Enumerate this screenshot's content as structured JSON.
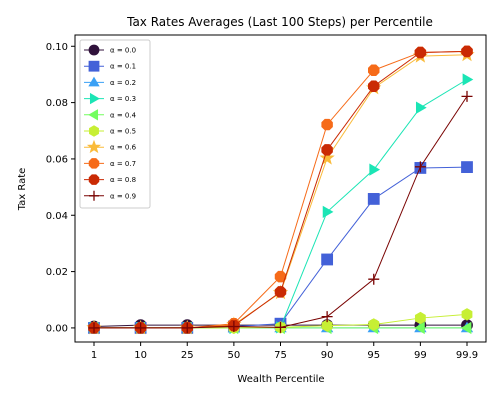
{
  "chart_data": {
    "type": "line",
    "title": "Tax Rates Averages (Last 100 Steps) per Percentile",
    "xlabel": "Wealth Percentile",
    "ylabel": "Tax Rate",
    "categories": [
      "1",
      "10",
      "25",
      "50",
      "75",
      "90",
      "95",
      "99",
      "99.9"
    ],
    "ylim": [
      -0.005,
      0.104
    ],
    "yticks": [
      0.0,
      0.02,
      0.04,
      0.06,
      0.08,
      0.1
    ],
    "ytick_labels": [
      "0.00",
      "0.02",
      "0.04",
      "0.06",
      "0.08",
      "0.10"
    ],
    "grid": false,
    "legend_position": "top-left",
    "series": [
      {
        "name": "α = 0.0",
        "color": "#30123b",
        "marker": "circle",
        "values": [
          0.0005,
          0.001,
          0.001,
          0.001,
          0.001,
          0.001,
          0.001,
          0.001,
          0.001
        ]
      },
      {
        "name": "α = 0.1",
        "color": "#4361d8",
        "marker": "square",
        "values": [
          0.0,
          0.0,
          0.0,
          0.0005,
          0.0015,
          0.0243,
          0.0458,
          0.0568,
          0.0571
        ]
      },
      {
        "name": "α = 0.2",
        "color": "#3aa0f5",
        "marker": "triangle-up",
        "values": [
          0.0,
          0.0,
          0.0,
          0.0,
          0.0,
          0.0,
          0.0,
          0.0,
          0.0
        ]
      },
      {
        "name": "α = 0.3",
        "color": "#1be5b5",
        "marker": "triangle-right",
        "values": [
          0.0,
          0.0,
          0.0,
          0.0,
          0.0002,
          0.0412,
          0.0562,
          0.0782,
          0.0882
        ]
      },
      {
        "name": "α = 0.4",
        "color": "#72fe5e",
        "marker": "triangle-left",
        "values": [
          0.0,
          0.0,
          0.0,
          0.0,
          0.0,
          0.0,
          0.0,
          0.0,
          0.0
        ]
      },
      {
        "name": "α = 0.5",
        "color": "#c7ef34",
        "marker": "hexagon",
        "values": [
          0.0,
          0.0,
          0.0,
          0.0,
          0.0002,
          0.0008,
          0.0012,
          0.0035,
          0.0048
        ]
      },
      {
        "name": "α = 0.6",
        "color": "#fabb3a",
        "marker": "star",
        "values": [
          0.0,
          0.0,
          0.0,
          0.0012,
          0.0125,
          0.0603,
          0.0852,
          0.0965,
          0.097
        ]
      },
      {
        "name": "α = 0.7",
        "color": "#f66b19",
        "marker": "octagon",
        "values": [
          0.0,
          0.0,
          0.0,
          0.0015,
          0.0182,
          0.0722,
          0.0915,
          0.0978,
          0.0982
        ]
      },
      {
        "name": "α = 0.8",
        "color": "#ca2a04",
        "marker": "octagon",
        "values": [
          0.0,
          0.0,
          0.0,
          0.0008,
          0.0128,
          0.0632,
          0.0858,
          0.0978,
          0.0982
        ]
      },
      {
        "name": "α = 0.9",
        "color": "#7a0403",
        "marker": "plus",
        "values": [
          0.0,
          0.0,
          0.0,
          0.0005,
          0.0002,
          0.004,
          0.0173,
          0.0572,
          0.0822
        ]
      }
    ]
  }
}
